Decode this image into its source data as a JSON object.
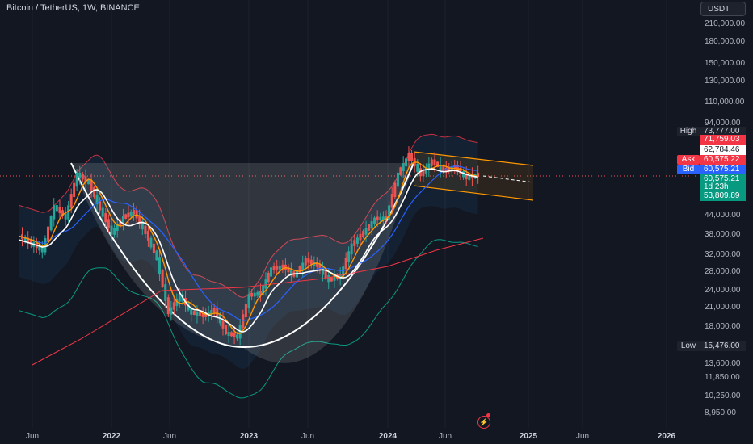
{
  "header": {
    "symbol_title": "Bitcoin / TetherUS, 1W, BINANCE",
    "currency_button": "USDT"
  },
  "colors": {
    "background": "#131722",
    "up_candle": "#26a69a",
    "down_candle": "#ef5350",
    "bollinger": "#f23645",
    "ema_short": "#ff9800",
    "ema_long": "#2962ff",
    "white_line": "#ffffff",
    "channel": "#ff9800",
    "lower_envelope": "#089981",
    "ma200": "#f23645"
  },
  "chart_data": {
    "type": "candlestick",
    "title": "Bitcoin / TetherUS, 1W, BINANCE",
    "y_scale": "log",
    "y_ticks": [
      "210,000.00",
      "180,000.00",
      "150,000.00",
      "130,000.00",
      "110,000.00",
      "94,000.00",
      "44,000.00",
      "38,000.00",
      "32,000.00",
      "28,000.00",
      "24,000.00",
      "21,000.00",
      "18,000.00",
      "13,600.00",
      "11,850.00",
      "10,250.00",
      "8,950.00"
    ],
    "x_ticks": [
      {
        "label": "Jun",
        "bold": false
      },
      {
        "label": "2022",
        "bold": true
      },
      {
        "label": "Jun",
        "bold": false
      },
      {
        "label": "2023",
        "bold": true
      },
      {
        "label": "Jun",
        "bold": false
      },
      {
        "label": "2024",
        "bold": true
      },
      {
        "label": "Jun",
        "bold": false
      },
      {
        "label": "2025",
        "bold": true
      },
      {
        "label": "Jun",
        "bold": false
      },
      {
        "label": "2026",
        "bold": true
      }
    ],
    "price_tags": {
      "high_label": "High",
      "high_value": "73,777.00",
      "tag1_value": "71,759.03",
      "tag2_value": "62,784.46",
      "ask_label": "Ask",
      "ask_value": "60,575.22",
      "bid_label": "Bid",
      "bid_value": "60,575.21",
      "last_value": "60,575.21",
      "countdown": "1d 23h",
      "tag3_value": "53,809.89",
      "low_label": "Low",
      "low_value": "15,476.00"
    },
    "price_path": [
      [
        "2021-05-01",
        37000
      ],
      [
        "2021-06-01",
        35000
      ],
      [
        "2021-07-01",
        33000
      ],
      [
        "2021-08-01",
        47000
      ],
      [
        "2021-09-01",
        43000
      ],
      [
        "2021-10-01",
        61000
      ],
      [
        "2021-11-01",
        57000
      ],
      [
        "2021-12-01",
        46000
      ],
      [
        "2022-01-01",
        38000
      ],
      [
        "2022-02-01",
        43000
      ],
      [
        "2022-03-01",
        45000
      ],
      [
        "2022-04-01",
        38000
      ],
      [
        "2022-05-01",
        31000
      ],
      [
        "2022-06-01",
        20000
      ],
      [
        "2022-07-01",
        23000
      ],
      [
        "2022-08-01",
        20000
      ],
      [
        "2022-09-01",
        19500
      ],
      [
        "2022-10-01",
        20500
      ],
      [
        "2022-11-01",
        17000
      ],
      [
        "2022-12-01",
        16500
      ],
      [
        "2023-01-01",
        23000
      ],
      [
        "2023-02-01",
        23500
      ],
      [
        "2023-03-01",
        28500
      ],
      [
        "2023-04-01",
        29000
      ],
      [
        "2023-05-01",
        27000
      ],
      [
        "2023-06-01",
        30500
      ],
      [
        "2023-07-01",
        29200
      ],
      [
        "2023-08-01",
        26000
      ],
      [
        "2023-09-01",
        27000
      ],
      [
        "2023-10-01",
        34500
      ],
      [
        "2023-11-01",
        38000
      ],
      [
        "2023-12-01",
        42500
      ],
      [
        "2024-01-01",
        43000
      ],
      [
        "2024-02-01",
        61000
      ],
      [
        "2024-03-01",
        71000
      ],
      [
        "2024-04-01",
        60500
      ],
      [
        "2024-05-01",
        67500
      ],
      [
        "2024-06-01",
        62700
      ],
      [
        "2024-07-01",
        64600
      ],
      [
        "2024-08-01",
        59000
      ],
      [
        "2024-09-01",
        60575
      ]
    ]
  }
}
